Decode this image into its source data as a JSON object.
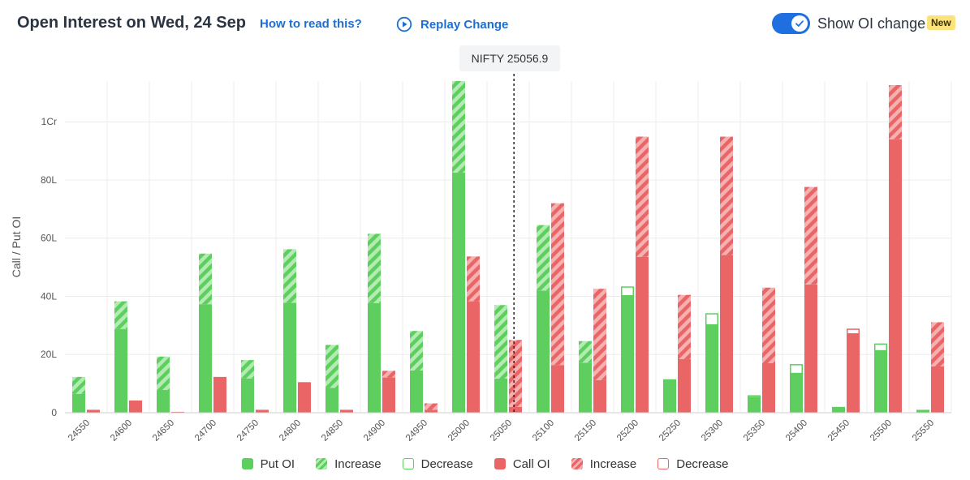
{
  "header": {
    "title": "Open Interest on Wed, 24 Sep",
    "help_link": "How to read this?",
    "replay_label": "Replay Change",
    "toggle_label": "Show OI change",
    "toggle_on": true,
    "badge": "New"
  },
  "tooltip": {
    "text": "NIFTY 25056.9"
  },
  "legend": [
    {
      "label": "Put OI",
      "kind": "put-solid"
    },
    {
      "label": "Increase",
      "kind": "put-increase"
    },
    {
      "label": "Decrease",
      "kind": "put-decrease"
    },
    {
      "label": "Call OI",
      "kind": "call-solid"
    },
    {
      "label": "Increase",
      "kind": "call-increase"
    },
    {
      "label": "Decrease",
      "kind": "call-decrease"
    }
  ],
  "colors": {
    "put": "#5ecf5e",
    "put_light": "#b3ecb3",
    "call": "#ea6566",
    "call_light": "#f5b1b1",
    "accent": "#1f6fe0",
    "link": "#1d6fd1",
    "badge": "#fbe27a"
  },
  "chart_data": {
    "type": "bar",
    "ylabel": "Call / Put OI",
    "unit": "lakh",
    "ylim": [
      0,
      114
    ],
    "yticks": [
      {
        "value": 0,
        "label": "0"
      },
      {
        "value": 20,
        "label": "20L"
      },
      {
        "value": 40,
        "label": "40L"
      },
      {
        "value": 60,
        "label": "60L"
      },
      {
        "value": 80,
        "label": "80L"
      },
      {
        "value": 100,
        "label": "1Cr"
      }
    ],
    "spot_label": "NIFTY 25056.9",
    "spot": 25056.9,
    "categories": [
      "24550",
      "24600",
      "24650",
      "24700",
      "24750",
      "24800",
      "24850",
      "24900",
      "24950",
      "25000",
      "25050",
      "25100",
      "25150",
      "25200",
      "25250",
      "25300",
      "25350",
      "25400",
      "25450",
      "25500",
      "25550"
    ],
    "put": {
      "base": [
        6.5,
        28.8,
        7.8,
        37.3,
        11.8,
        37.8,
        8.5,
        37.7,
        14.5,
        82.5,
        11.7,
        42.0,
        17.2,
        40.2,
        11.0,
        30.2,
        5.3,
        13.5,
        2.0,
        21.3,
        1.0
      ],
      "change": [
        5.8,
        9.5,
        11.5,
        17.4,
        6.3,
        18.4,
        14.8,
        23.8,
        13.6,
        31.5,
        25.3,
        22.5,
        7.4,
        -3.2,
        -0.5,
        -4.0,
        -0.7,
        -3.2,
        0,
        -2.5,
        0
      ]
    },
    "call": {
      "base": [
        1.0,
        4.2,
        0.3,
        12.3,
        1.0,
        10.5,
        1.0,
        12.1,
        1.0,
        38.3,
        2.0,
        16.4,
        11.2,
        53.6,
        18.4,
        54.2,
        17.0,
        44.1,
        27.1,
        94.0,
        15.9
      ],
      "change": [
        0,
        0,
        0,
        0,
        0,
        0,
        0,
        2.3,
        2.2,
        15.4,
        23.0,
        55.6,
        31.4,
        41.3,
        22.1,
        40.7,
        26.0,
        33.5,
        -1.8,
        18.6,
        15.2
      ]
    }
  }
}
